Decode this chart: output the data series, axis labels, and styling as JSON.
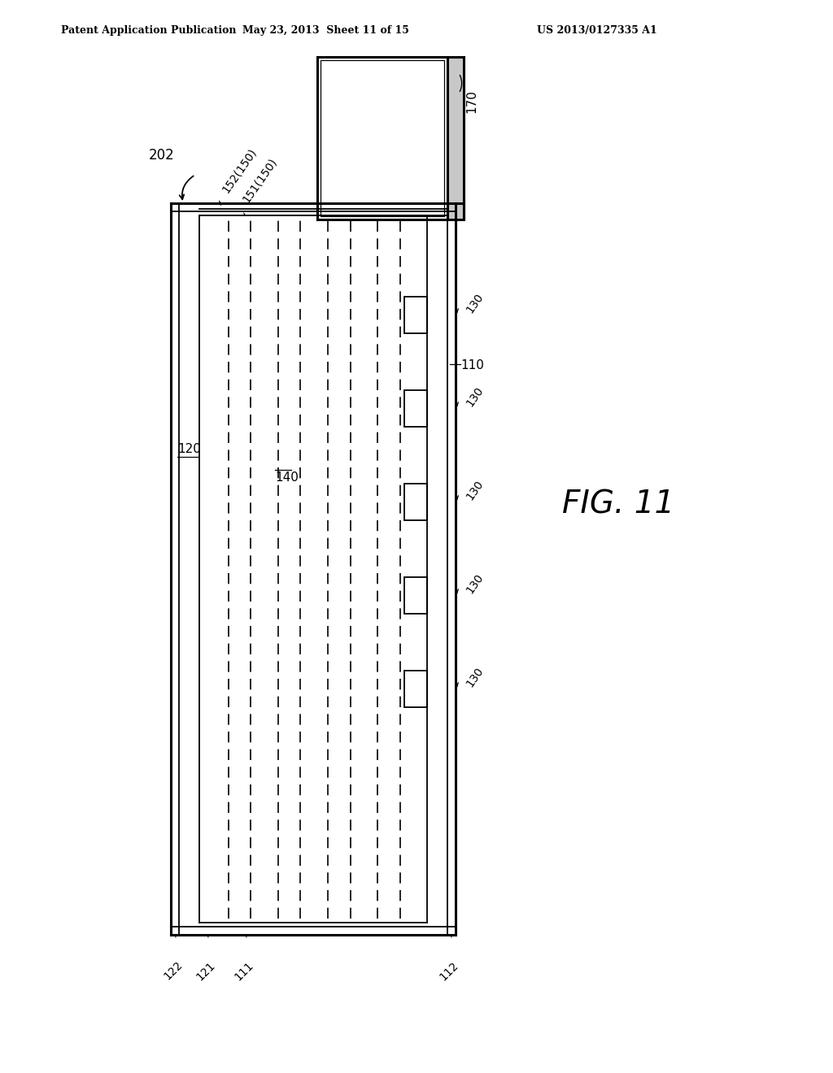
{
  "header_left": "Patent Application Publication",
  "header_mid": "May 23, 2013  Sheet 11 of 15",
  "header_right": "US 2013/0127335 A1",
  "fig_label": "FIG. 11",
  "ref_202": "202",
  "ref_170": "170",
  "ref_110": "110",
  "ref_120": "120",
  "ref_122": "122",
  "ref_121": "121",
  "ref_111": "111",
  "ref_112": "112",
  "ref_140": "140",
  "ref_130": "130",
  "ref_151": "151(150)",
  "ref_152": "152(150)",
  "bg_color": "#ffffff",
  "line_color": "#000000"
}
